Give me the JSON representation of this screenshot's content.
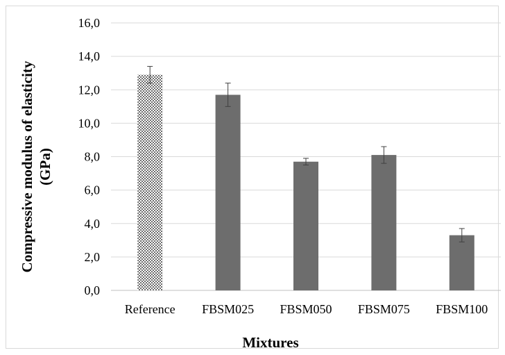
{
  "chart_data": {
    "type": "bar",
    "categories": [
      "Reference",
      "FBSM025",
      "FBSM050",
      "FBSM075",
      "FBSM100"
    ],
    "values": [
      12.9,
      11.7,
      7.7,
      8.1,
      3.3
    ],
    "error": [
      0.5,
      0.7,
      0.2,
      0.5,
      0.4
    ],
    "ylim": [
      0,
      16
    ],
    "yticks": [
      "0,0",
      "2,0",
      "4,0",
      "6,0",
      "8,0",
      "10,0",
      "12,0",
      "14,0",
      "16,0"
    ],
    "ylabel_line1": "Compressive  modulus of elasticity",
    "ylabel_line2": "(GPa)",
    "xlabel": "Mixtures",
    "grid": true,
    "colors": {
      "bar": "#6d6d6d",
      "reference_pattern": "dotted",
      "grid": "#d9d9d9",
      "axis": "#bfbfbf"
    }
  }
}
